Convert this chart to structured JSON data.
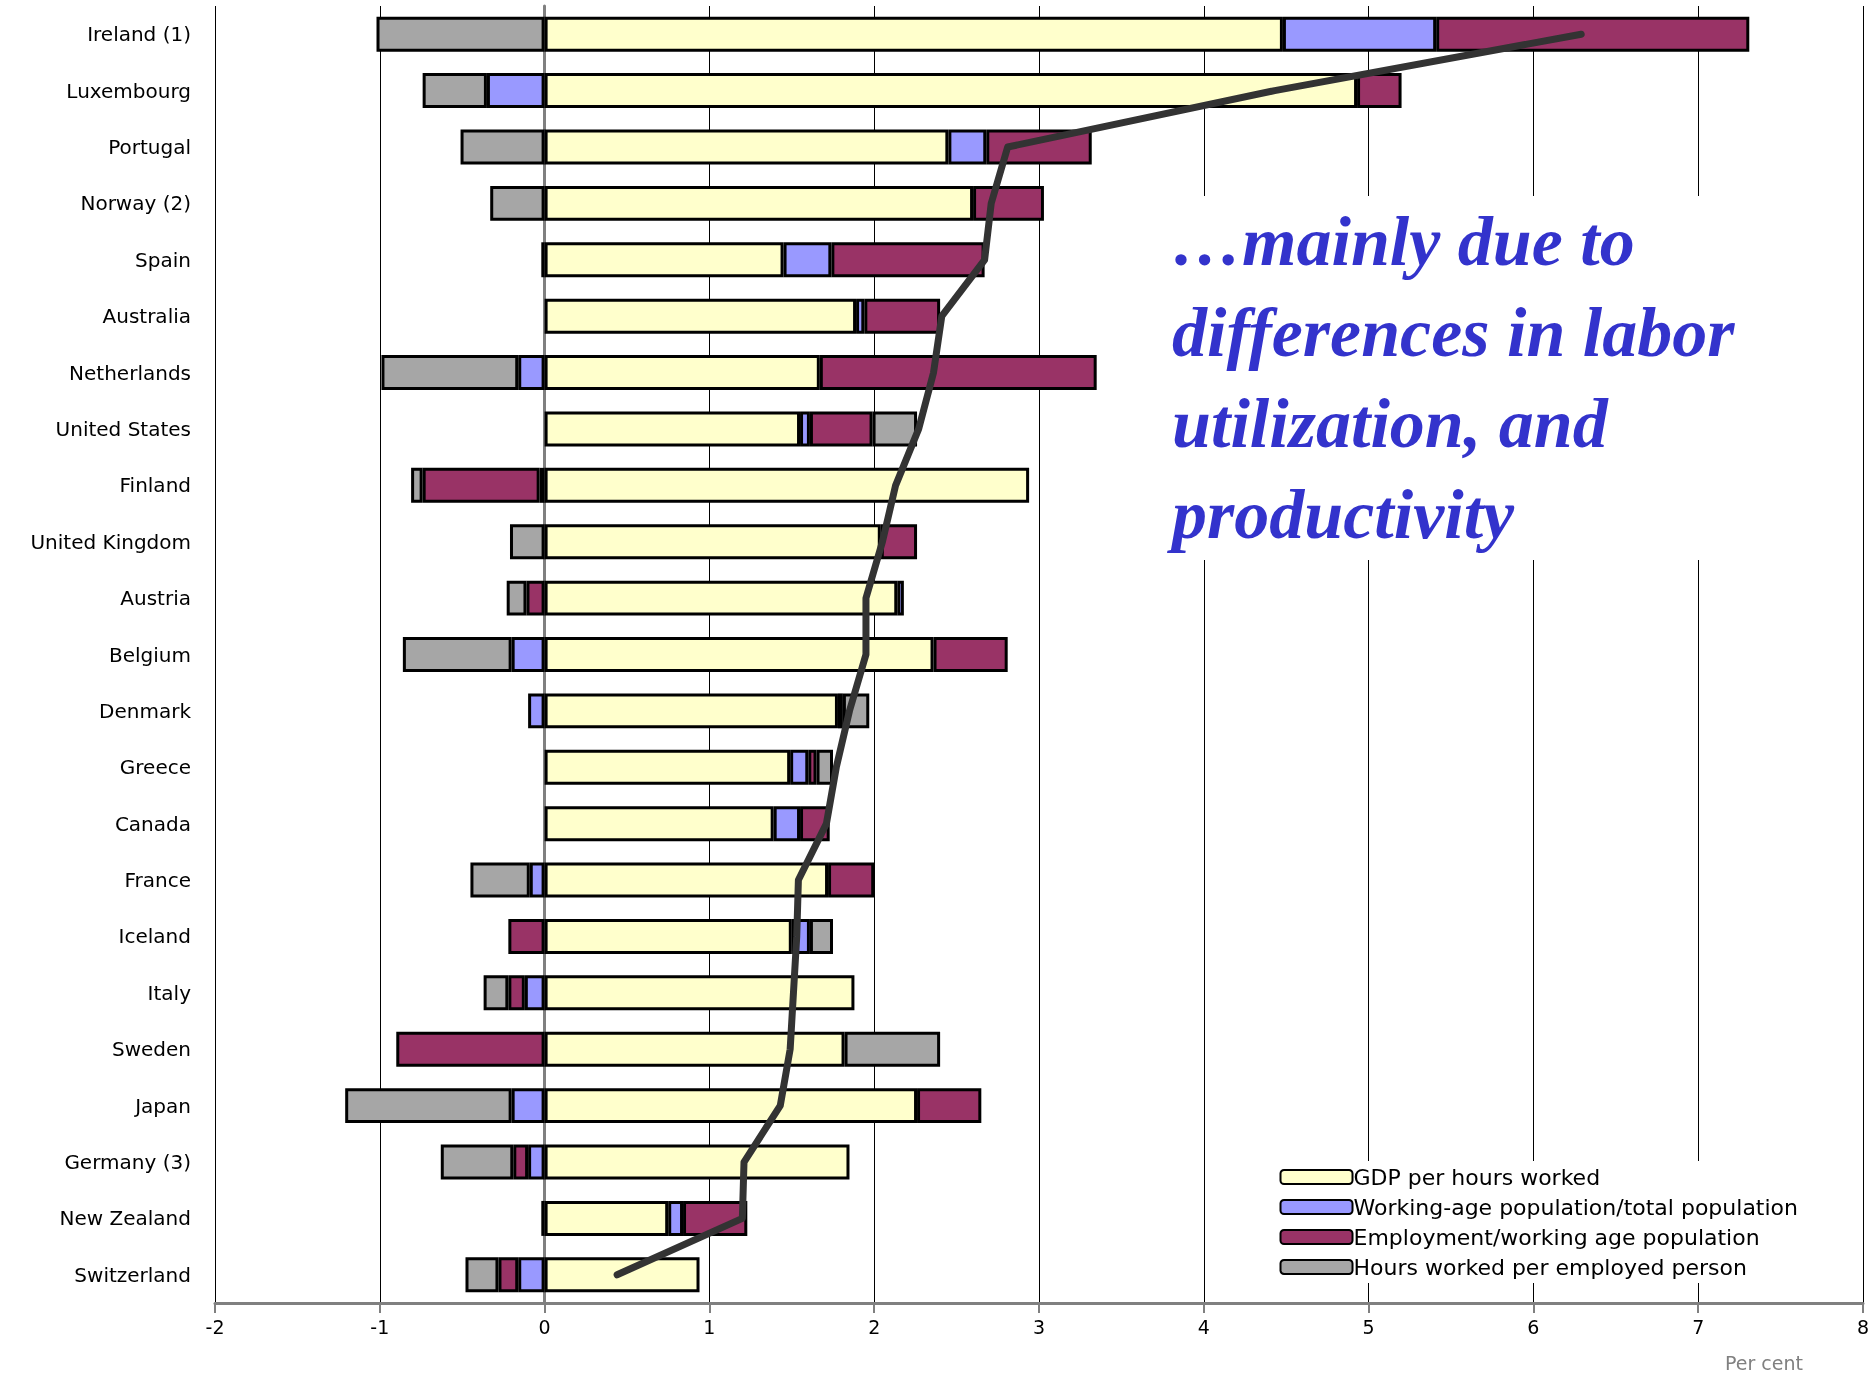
{
  "chart_data": {
    "type": "bar",
    "orientation": "horizontal",
    "stacked": true,
    "categories": [
      "Ireland (1)",
      "Luxembourg",
      "Portugal",
      "Norway (2)",
      "Spain",
      "Australia",
      "Netherlands",
      "United States",
      "Finland",
      "United Kingdom",
      "Austria",
      "Belgium",
      "Denmark",
      "Greece",
      "Canada",
      "France",
      "Iceland",
      "Italy",
      "Sweden",
      "Japan",
      "Germany (3)",
      "New Zealand",
      "Switzerland"
    ],
    "series": [
      {
        "name": "GDP per hours worked",
        "color": "#ffffcc",
        "values": [
          4.48,
          4.93,
          2.45,
          2.6,
          1.45,
          1.89,
          1.67,
          1.55,
          2.94,
          2.04,
          2.14,
          2.36,
          1.78,
          1.49,
          1.39,
          1.72,
          1.5,
          1.88,
          1.82,
          2.26,
          1.85,
          0.75,
          0.94
        ]
      },
      {
        "name": "Working-age population/total population",
        "color": "#9999ff",
        "values": [
          0.93,
          -0.35,
          0.23,
          null,
          0.29,
          0.05,
          -0.16,
          0.06,
          -0.03,
          null,
          0.04,
          -0.2,
          -0.1,
          0.11,
          0.16,
          -0.09,
          0.11,
          -0.12,
          null,
          -0.2,
          -0.1,
          0.09,
          -0.16
        ]
      },
      {
        "name": "Employment/working age population",
        "color": "#993366",
        "values": [
          1.9,
          0.27,
          0.64,
          0.43,
          0.93,
          0.46,
          1.68,
          0.38,
          -0.71,
          0.22,
          -0.11,
          0.45,
          0.03,
          0.05,
          0.18,
          0.28,
          -0.22,
          -0.1,
          -0.9,
          0.39,
          -0.09,
          0.39,
          -0.12
        ]
      },
      {
        "name": "Hours worked per employed person",
        "color": "#a6a6a6",
        "values": [
          -1.02,
          -0.39,
          -0.51,
          -0.33,
          -0.02,
          null,
          -0.83,
          0.27,
          -0.07,
          -0.21,
          -0.12,
          -0.66,
          0.16,
          0.1,
          null,
          -0.36,
          0.14,
          -0.15,
          0.58,
          -1.01,
          -0.44,
          -0.02,
          -0.2
        ]
      },
      {
        "type": "line",
        "color": "#333333",
        "marker": "none",
        "line_style": "solid",
        "values": [
          6.29,
          4.43,
          2.81,
          2.71,
          2.67,
          2.41,
          2.36,
          2.27,
          2.13,
          2.05,
          1.95,
          1.95,
          1.85,
          1.77,
          1.71,
          1.54,
          1.53,
          1.51,
          1.49,
          1.43,
          1.21,
          1.2,
          0.44
        ]
      }
    ],
    "xlim": [
      -2,
      8
    ],
    "xticks": [
      -2,
      -1,
      0,
      1,
      2,
      3,
      4,
      5,
      6,
      7,
      8
    ],
    "xlabel": "Per cent",
    "grid": "x",
    "legend": "bottom right",
    "annotations": [
      "…mainly due to differences in labor utilization, and productivity"
    ]
  }
}
